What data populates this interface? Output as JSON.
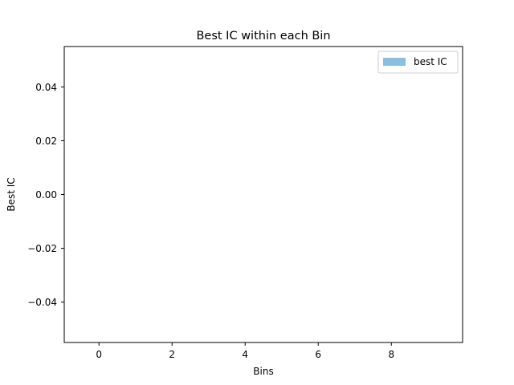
{
  "chart_data": {
    "type": "bar",
    "title": "Best IC within each Bin",
    "xlabel": "Bins",
    "ylabel": "Best IC",
    "xlim": [
      -0.95,
      9.95
    ],
    "ylim": [
      -0.055,
      0.055
    ],
    "xticks": [
      0,
      2,
      4,
      6,
      8
    ],
    "xtick_labels": [
      "0",
      "2",
      "4",
      "6",
      "8"
    ],
    "yticks": [
      -0.04,
      -0.02,
      0.0,
      0.02,
      0.04
    ],
    "ytick_labels": [
      "−0.04",
      "−0.02",
      "0.00",
      "0.02",
      "0.04"
    ],
    "grid": false,
    "legend_position": "top-right",
    "series": [
      {
        "name": "best IC",
        "color": "#8bbfdd",
        "x": [
          0,
          1,
          2,
          3,
          4,
          5,
          6,
          7,
          8,
          9
        ],
        "values": [
          0,
          0,
          0,
          0,
          0,
          0,
          0,
          0,
          0,
          0
        ]
      }
    ]
  }
}
